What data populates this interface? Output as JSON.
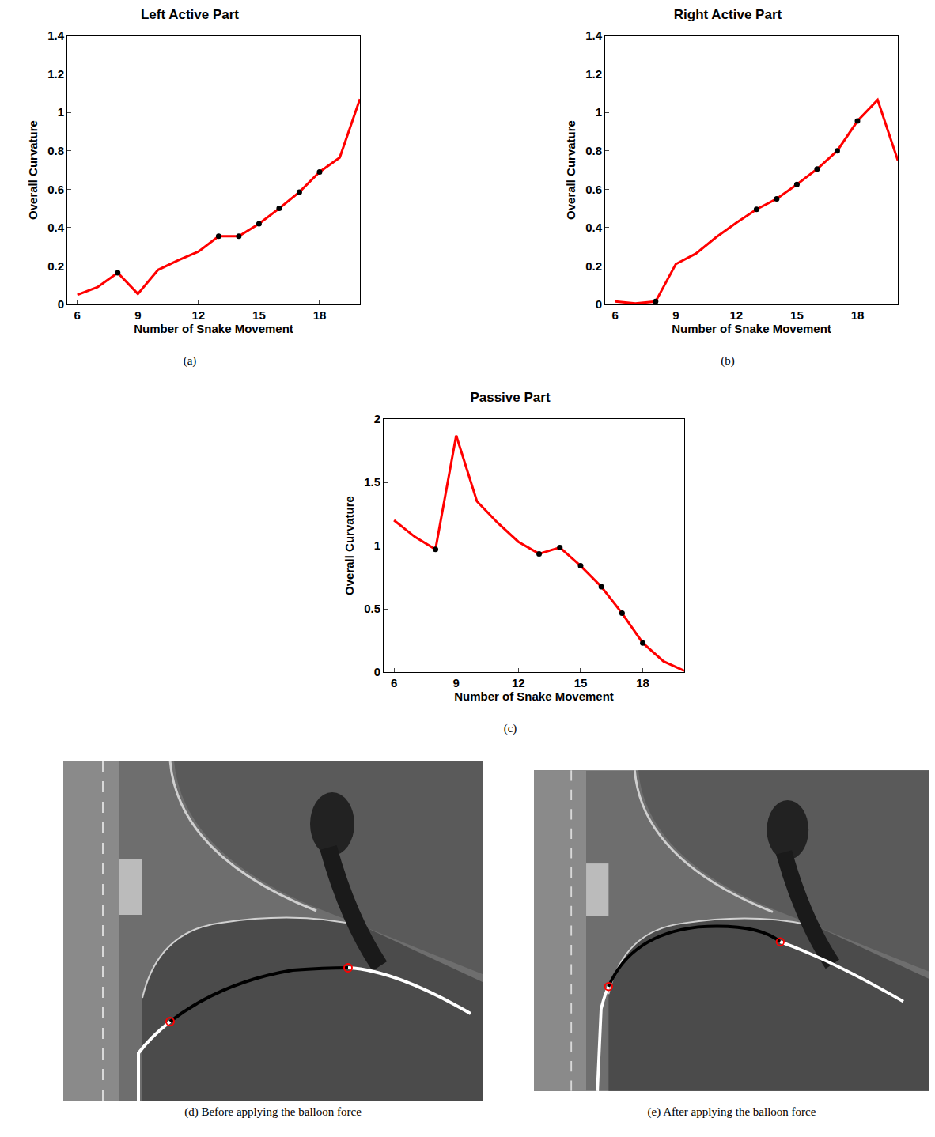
{
  "chart_data": [
    {
      "type": "line",
      "title": "Left Active Part",
      "x_label": "Number of Snake Movement",
      "y_label": "Overall Curvature",
      "x": [
        6,
        7,
        8,
        9,
        10,
        11,
        12,
        13,
        14,
        15,
        16,
        17,
        18,
        19,
        20
      ],
      "series": [
        {
          "color": "#ff0000",
          "line_style": "solid",
          "values": [
            0.05,
            0.09,
            0.165,
            0.055,
            0.18,
            0.23,
            0.275,
            0.355,
            0.355,
            0.42,
            0.5,
            0.585,
            0.69,
            0.765,
            1.07
          ]
        },
        {
          "color": "#000000",
          "type": "scatter",
          "marker": "circle",
          "values": [
            null,
            null,
            0.165,
            null,
            null,
            null,
            null,
            0.355,
            0.355,
            0.42,
            0.5,
            0.585,
            0.69,
            null,
            null
          ]
        }
      ],
      "xlim": [
        5.5,
        20
      ],
      "xticks": [
        6,
        9,
        12,
        15,
        18
      ],
      "ylim": [
        0,
        1.4
      ],
      "yticks": [
        0,
        0.2,
        0.4,
        0.6,
        0.8,
        1,
        1.2,
        1.4
      ],
      "grid": false
    },
    {
      "type": "line",
      "title": "Right Active Part",
      "x_label": "Number of Snake Movement",
      "y_label": "Overall Curvature",
      "x": [
        6,
        7,
        8,
        9,
        10,
        11,
        12,
        13,
        14,
        15,
        16,
        17,
        18,
        19,
        20
      ],
      "series": [
        {
          "color": "#ff0000",
          "line_style": "solid",
          "values": [
            0.015,
            0.005,
            0.015,
            0.21,
            0.265,
            0.35,
            0.425,
            0.495,
            0.55,
            0.625,
            0.705,
            0.8,
            0.955,
            1.065,
            0.75
          ]
        },
        {
          "color": "#000000",
          "type": "scatter",
          "marker": "circle",
          "values": [
            null,
            null,
            0.015,
            null,
            null,
            null,
            null,
            0.495,
            0.55,
            0.625,
            0.705,
            0.8,
            0.955,
            null,
            null
          ]
        }
      ],
      "xlim": [
        5.5,
        20
      ],
      "xticks": [
        6,
        9,
        12,
        15,
        18
      ],
      "ylim": [
        0,
        1.4
      ],
      "yticks": [
        0,
        0.2,
        0.4,
        0.6,
        0.8,
        1,
        1.2,
        1.4
      ],
      "grid": false
    },
    {
      "type": "line",
      "title": "Passive Part",
      "x_label": "Number of Snake Movement",
      "y_label": "Overall Curvature",
      "x": [
        6,
        7,
        8,
        9,
        10,
        11,
        12,
        13,
        14,
        15,
        16,
        17,
        18,
        19,
        20
      ],
      "series": [
        {
          "color": "#ff0000",
          "line_style": "solid",
          "values": [
            1.2,
            1.07,
            0.97,
            1.87,
            1.35,
            1.18,
            1.03,
            0.935,
            0.985,
            0.84,
            0.675,
            0.465,
            0.23,
            0.085,
            0.01
          ]
        },
        {
          "color": "#000000",
          "type": "scatter",
          "marker": "circle",
          "values": [
            null,
            null,
            0.97,
            null,
            null,
            null,
            null,
            0.935,
            0.985,
            0.84,
            0.675,
            0.465,
            0.23,
            null,
            null
          ]
        }
      ],
      "xlim": [
        5.5,
        20
      ],
      "xticks": [
        6,
        9,
        12,
        15,
        18
      ],
      "ylim": [
        0,
        2
      ],
      "yticks": [
        0,
        0.5,
        1,
        1.5,
        2
      ],
      "grid": false
    }
  ],
  "captions": [
    "(a)",
    "(b)",
    "(c)"
  ],
  "images": [
    {
      "caption": "(d) Before applying the balloon force"
    },
    {
      "caption": "(e) After applying the balloon force"
    }
  ]
}
